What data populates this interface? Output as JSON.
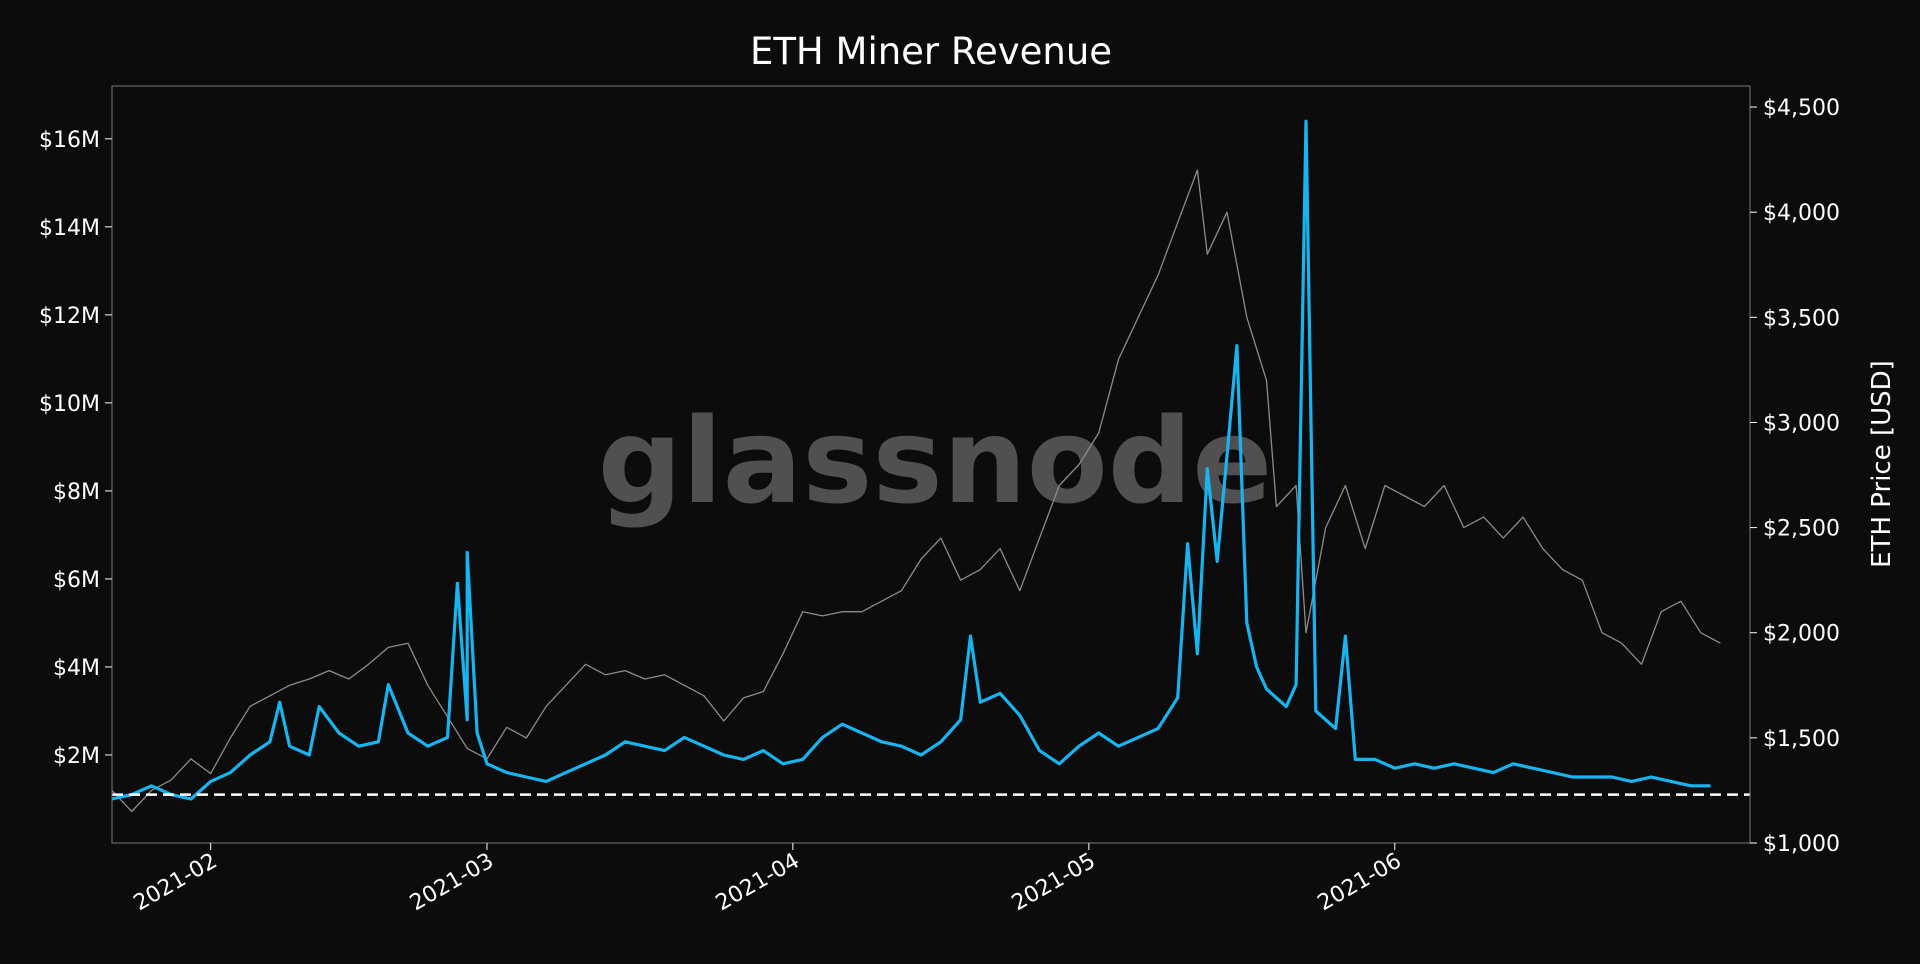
{
  "chart_data": {
    "type": "line",
    "title": "ETH Miner Revenue",
    "ylabel_right": "ETH Price [USD]",
    "watermark": "glassnode",
    "x_range": [
      "2021-01-22",
      "2021-07-07"
    ],
    "x_ticks": [
      "2021-02",
      "2021-03",
      "2021-04",
      "2021-05",
      "2021-06"
    ],
    "y_left": {
      "range": [
        0,
        17200000
      ],
      "ticks": [
        2000000,
        4000000,
        6000000,
        8000000,
        10000000,
        12000000,
        14000000,
        16000000
      ],
      "tick_labels": [
        "$2M",
        "$4M",
        "$6M",
        "$8M",
        "$10M",
        "$12M",
        "$14M",
        "$16M"
      ]
    },
    "y_right": {
      "range": [
        1000,
        4600
      ],
      "ticks": [
        1000,
        1500,
        2000,
        2500,
        3000,
        3500,
        4000,
        4500
      ],
      "tick_labels": [
        "$1,000",
        "$1,500",
        "$2,000",
        "$2,500",
        "$3,000",
        "$3,500",
        "$4,000",
        "$4,500"
      ]
    },
    "reference_line": {
      "value": 1100000,
      "axis": "left",
      "style": "dashed"
    },
    "grid": false,
    "series": [
      {
        "axis": "left",
        "color": "#18b4f0",
        "points": [
          [
            "2021-01-22",
            1000000
          ],
          [
            "2021-01-24",
            1100000
          ],
          [
            "2021-01-26",
            1300000
          ],
          [
            "2021-01-28",
            1100000
          ],
          [
            "2021-01-30",
            1000000
          ],
          [
            "2021-02-01",
            1400000
          ],
          [
            "2021-02-03",
            1600000
          ],
          [
            "2021-02-05",
            2000000
          ],
          [
            "2021-02-07",
            2300000
          ],
          [
            "2021-02-08",
            3200000
          ],
          [
            "2021-02-09",
            2200000
          ],
          [
            "2021-02-11",
            2000000
          ],
          [
            "2021-02-12",
            3100000
          ],
          [
            "2021-02-14",
            2500000
          ],
          [
            "2021-02-16",
            2200000
          ],
          [
            "2021-02-18",
            2300000
          ],
          [
            "2021-02-19",
            3600000
          ],
          [
            "2021-02-21",
            2500000
          ],
          [
            "2021-02-23",
            2200000
          ],
          [
            "2021-02-25",
            2400000
          ],
          [
            "2021-02-26",
            5900000
          ],
          [
            "2021-02-27",
            2800000
          ],
          [
            "2021-02-27",
            6600000
          ],
          [
            "2021-02-28",
            2500000
          ],
          [
            "2021-03-01",
            1800000
          ],
          [
            "2021-03-03",
            1600000
          ],
          [
            "2021-03-05",
            1500000
          ],
          [
            "2021-03-07",
            1400000
          ],
          [
            "2021-03-09",
            1600000
          ],
          [
            "2021-03-11",
            1800000
          ],
          [
            "2021-03-13",
            2000000
          ],
          [
            "2021-03-15",
            2300000
          ],
          [
            "2021-03-17",
            2200000
          ],
          [
            "2021-03-19",
            2100000
          ],
          [
            "2021-03-21",
            2400000
          ],
          [
            "2021-03-23",
            2200000
          ],
          [
            "2021-03-25",
            2000000
          ],
          [
            "2021-03-27",
            1900000
          ],
          [
            "2021-03-29",
            2100000
          ],
          [
            "2021-03-31",
            1800000
          ],
          [
            "2021-04-02",
            1900000
          ],
          [
            "2021-04-04",
            2400000
          ],
          [
            "2021-04-06",
            2700000
          ],
          [
            "2021-04-08",
            2500000
          ],
          [
            "2021-04-10",
            2300000
          ],
          [
            "2021-04-12",
            2200000
          ],
          [
            "2021-04-14",
            2000000
          ],
          [
            "2021-04-16",
            2300000
          ],
          [
            "2021-04-18",
            2800000
          ],
          [
            "2021-04-19",
            4700000
          ],
          [
            "2021-04-20",
            3200000
          ],
          [
            "2021-04-22",
            3400000
          ],
          [
            "2021-04-24",
            2900000
          ],
          [
            "2021-04-26",
            2100000
          ],
          [
            "2021-04-28",
            1800000
          ],
          [
            "2021-04-30",
            2200000
          ],
          [
            "2021-05-02",
            2500000
          ],
          [
            "2021-05-04",
            2200000
          ],
          [
            "2021-05-06",
            2400000
          ],
          [
            "2021-05-08",
            2600000
          ],
          [
            "2021-05-10",
            3300000
          ],
          [
            "2021-05-11",
            6800000
          ],
          [
            "2021-05-12",
            4300000
          ],
          [
            "2021-05-13",
            8500000
          ],
          [
            "2021-05-14",
            6400000
          ],
          [
            "2021-05-15",
            8800000
          ],
          [
            "2021-05-16",
            11300000
          ],
          [
            "2021-05-17",
            5000000
          ],
          [
            "2021-05-18",
            4000000
          ],
          [
            "2021-05-19",
            3500000
          ],
          [
            "2021-05-21",
            3100000
          ],
          [
            "2021-05-22",
            3600000
          ],
          [
            "2021-05-23",
            16400000
          ],
          [
            "2021-05-24",
            3000000
          ],
          [
            "2021-05-25",
            2800000
          ],
          [
            "2021-05-26",
            2600000
          ],
          [
            "2021-05-27",
            4700000
          ],
          [
            "2021-05-28",
            1900000
          ],
          [
            "2021-05-30",
            1900000
          ],
          [
            "2021-06-01",
            1700000
          ],
          [
            "2021-06-03",
            1800000
          ],
          [
            "2021-06-05",
            1700000
          ],
          [
            "2021-06-07",
            1800000
          ],
          [
            "2021-06-09",
            1700000
          ],
          [
            "2021-06-11",
            1600000
          ],
          [
            "2021-06-13",
            1800000
          ],
          [
            "2021-06-15",
            1700000
          ],
          [
            "2021-06-17",
            1600000
          ],
          [
            "2021-06-19",
            1500000
          ],
          [
            "2021-06-21",
            1500000
          ],
          [
            "2021-06-23",
            1500000
          ],
          [
            "2021-06-25",
            1400000
          ],
          [
            "2021-06-27",
            1500000
          ],
          [
            "2021-06-29",
            1400000
          ],
          [
            "2021-07-01",
            1300000
          ],
          [
            "2021-07-03",
            1300000
          ]
        ]
      },
      {
        "axis": "right",
        "color": "#8c8c8c",
        "points": [
          [
            "2021-01-22",
            1250
          ],
          [
            "2021-01-24",
            1150
          ],
          [
            "2021-01-26",
            1250
          ],
          [
            "2021-01-28",
            1300
          ],
          [
            "2021-01-30",
            1400
          ],
          [
            "2021-02-01",
            1330
          ],
          [
            "2021-02-03",
            1500
          ],
          [
            "2021-02-05",
            1650
          ],
          [
            "2021-02-07",
            1700
          ],
          [
            "2021-02-09",
            1750
          ],
          [
            "2021-02-11",
            1780
          ],
          [
            "2021-02-13",
            1820
          ],
          [
            "2021-02-15",
            1780
          ],
          [
            "2021-02-17",
            1850
          ],
          [
            "2021-02-19",
            1930
          ],
          [
            "2021-02-21",
            1950
          ],
          [
            "2021-02-23",
            1750
          ],
          [
            "2021-02-25",
            1600
          ],
          [
            "2021-02-27",
            1450
          ],
          [
            "2021-03-01",
            1400
          ],
          [
            "2021-03-03",
            1550
          ],
          [
            "2021-03-05",
            1500
          ],
          [
            "2021-03-07",
            1650
          ],
          [
            "2021-03-09",
            1750
          ],
          [
            "2021-03-11",
            1850
          ],
          [
            "2021-03-13",
            1800
          ],
          [
            "2021-03-15",
            1820
          ],
          [
            "2021-03-17",
            1780
          ],
          [
            "2021-03-19",
            1800
          ],
          [
            "2021-03-21",
            1750
          ],
          [
            "2021-03-23",
            1700
          ],
          [
            "2021-03-25",
            1580
          ],
          [
            "2021-03-27",
            1690
          ],
          [
            "2021-03-29",
            1720
          ],
          [
            "2021-03-31",
            1900
          ],
          [
            "2021-04-02",
            2100
          ],
          [
            "2021-04-04",
            2080
          ],
          [
            "2021-04-06",
            2100
          ],
          [
            "2021-04-08",
            2100
          ],
          [
            "2021-04-10",
            2150
          ],
          [
            "2021-04-12",
            2200
          ],
          [
            "2021-04-14",
            2350
          ],
          [
            "2021-04-16",
            2450
          ],
          [
            "2021-04-18",
            2250
          ],
          [
            "2021-04-20",
            2300
          ],
          [
            "2021-04-22",
            2400
          ],
          [
            "2021-04-24",
            2200
          ],
          [
            "2021-04-26",
            2450
          ],
          [
            "2021-04-28",
            2700
          ],
          [
            "2021-04-30",
            2800
          ],
          [
            "2021-05-02",
            2950
          ],
          [
            "2021-05-04",
            3300
          ],
          [
            "2021-05-06",
            3500
          ],
          [
            "2021-05-08",
            3700
          ],
          [
            "2021-05-10",
            3950
          ],
          [
            "2021-05-12",
            4200
          ],
          [
            "2021-05-13",
            3800
          ],
          [
            "2021-05-15",
            4000
          ],
          [
            "2021-05-17",
            3500
          ],
          [
            "2021-05-19",
            3200
          ],
          [
            "2021-05-20",
            2600
          ],
          [
            "2021-05-22",
            2700
          ],
          [
            "2021-05-23",
            2000
          ],
          [
            "2021-05-25",
            2500
          ],
          [
            "2021-05-27",
            2700
          ],
          [
            "2021-05-29",
            2400
          ],
          [
            "2021-05-31",
            2700
          ],
          [
            "2021-06-02",
            2650
          ],
          [
            "2021-06-04",
            2600
          ],
          [
            "2021-06-06",
            2700
          ],
          [
            "2021-06-08",
            2500
          ],
          [
            "2021-06-10",
            2550
          ],
          [
            "2021-06-12",
            2450
          ],
          [
            "2021-06-14",
            2550
          ],
          [
            "2021-06-16",
            2400
          ],
          [
            "2021-06-18",
            2300
          ],
          [
            "2021-06-20",
            2250
          ],
          [
            "2021-06-22",
            2000
          ],
          [
            "2021-06-24",
            1950
          ],
          [
            "2021-06-26",
            1850
          ],
          [
            "2021-06-28",
            2100
          ],
          [
            "2021-06-30",
            2150
          ],
          [
            "2021-07-02",
            2000
          ],
          [
            "2021-07-04",
            1950
          ]
        ]
      }
    ]
  }
}
